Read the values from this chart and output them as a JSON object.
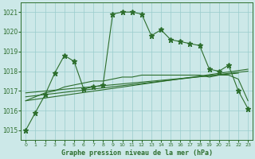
{
  "title": "Graphe pression niveau de la mer (hPa)",
  "bg_color": "#cce8e8",
  "grid_color": "#99cccc",
  "line_color": "#2d6e2d",
  "xlim": [
    -0.5,
    23.5
  ],
  "ylim": [
    1014.5,
    1021.5
  ],
  "yticks": [
    1015,
    1016,
    1017,
    1018,
    1019,
    1020,
    1021
  ],
  "xticks": [
    0,
    1,
    2,
    3,
    4,
    5,
    6,
    7,
    8,
    9,
    10,
    11,
    12,
    13,
    14,
    15,
    16,
    17,
    18,
    19,
    20,
    21,
    22,
    23
  ],
  "main_series_x": [
    0,
    1,
    2,
    3,
    4,
    5,
    6,
    7,
    8,
    9,
    10,
    11,
    12,
    13,
    14,
    15,
    16,
    17,
    18,
    19,
    20,
    21,
    22,
    23
  ],
  "main_series_y": [
    1015.0,
    1015.9,
    1016.8,
    1017.9,
    1018.8,
    1018.5,
    1017.1,
    1017.2,
    1017.3,
    1020.9,
    1021.0,
    1021.0,
    1020.9,
    1019.8,
    1020.1,
    1019.6,
    1019.5,
    1019.4,
    1019.3,
    1018.1,
    1018.0,
    1018.3,
    1017.0,
    1016.1
  ],
  "trend1_x": [
    0,
    23
  ],
  "trend1_y": [
    1016.7,
    1018.0
  ],
  "trend2_x": [
    0,
    23
  ],
  "trend2_y": [
    1016.5,
    1018.1
  ],
  "trend3_x": [
    0,
    22
  ],
  "trend3_y": [
    1016.9,
    1017.9
  ],
  "curve1_x": [
    0,
    1,
    2,
    3,
    4,
    5,
    6,
    7,
    8,
    9,
    10,
    11,
    12,
    13,
    14,
    15,
    16,
    17,
    18,
    19,
    20,
    21,
    22,
    23
  ],
  "curve1_y": [
    1016.5,
    1016.7,
    1016.9,
    1017.0,
    1017.2,
    1017.3,
    1017.4,
    1017.5,
    1017.5,
    1017.6,
    1017.7,
    1017.7,
    1017.8,
    1017.8,
    1017.8,
    1017.8,
    1017.8,
    1017.8,
    1017.8,
    1017.7,
    1017.8,
    1017.8,
    1017.6,
    1016.5
  ]
}
